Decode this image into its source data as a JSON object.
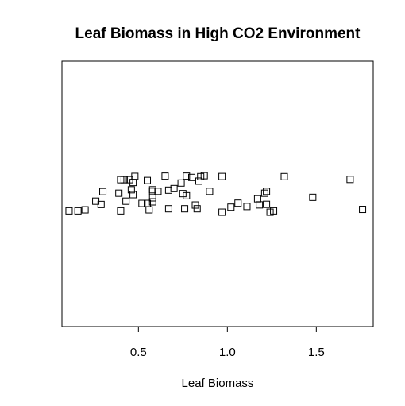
{
  "chart_data": {
    "type": "scatter",
    "title": "Leaf Biomass in High CO2 Environment",
    "xlabel": "Leaf Biomass",
    "ylabel": "",
    "xlim": [
      0.07,
      1.82
    ],
    "ylim": [
      -1,
      1
    ],
    "xticks": [
      0.5,
      1.0,
      1.5
    ],
    "xtick_labels": [
      "0.5",
      "1.0",
      "1.5"
    ],
    "grid": false,
    "legend": "none",
    "marker": "open-square",
    "marker_color": "#000000",
    "points": [
      {
        "x": 0.11,
        "y": -0.128
      },
      {
        "x": 0.16,
        "y": -0.128
      },
      {
        "x": 0.2,
        "y": -0.12
      },
      {
        "x": 0.26,
        "y": -0.055
      },
      {
        "x": 0.29,
        "y": -0.08
      },
      {
        "x": 0.3,
        "y": 0.017
      },
      {
        "x": 0.39,
        "y": 0.005
      },
      {
        "x": 0.4,
        "y": 0.107
      },
      {
        "x": 0.42,
        "y": 0.107
      },
      {
        "x": 0.4,
        "y": -0.128
      },
      {
        "x": 0.43,
        "y": -0.055
      },
      {
        "x": 0.45,
        "y": 0.107
      },
      {
        "x": 0.46,
        "y": 0.031
      },
      {
        "x": 0.47,
        "y": 0.086
      },
      {
        "x": 0.48,
        "y": 0.132
      },
      {
        "x": 0.47,
        "y": -0.006
      },
      {
        "x": 0.52,
        "y": -0.072
      },
      {
        "x": 0.55,
        "y": -0.072
      },
      {
        "x": 0.55,
        "y": 0.101
      },
      {
        "x": 0.56,
        "y": -0.12
      },
      {
        "x": 0.58,
        "y": -0.03
      },
      {
        "x": 0.58,
        "y": 0.031
      },
      {
        "x": 0.58,
        "y": 0.019
      },
      {
        "x": 0.58,
        "y": -0.06
      },
      {
        "x": 0.61,
        "y": 0.019
      },
      {
        "x": 0.65,
        "y": 0.134
      },
      {
        "x": 0.67,
        "y": 0.028
      },
      {
        "x": 0.67,
        "y": -0.112
      },
      {
        "x": 0.7,
        "y": 0.04
      },
      {
        "x": 0.74,
        "y": 0.082
      },
      {
        "x": 0.75,
        "y": 0.002
      },
      {
        "x": 0.76,
        "y": -0.112
      },
      {
        "x": 0.77,
        "y": 0.134
      },
      {
        "x": 0.77,
        "y": -0.014
      },
      {
        "x": 0.8,
        "y": 0.124
      },
      {
        "x": 0.82,
        "y": -0.084
      },
      {
        "x": 0.83,
        "y": -0.112
      },
      {
        "x": 0.84,
        "y": 0.096
      },
      {
        "x": 0.85,
        "y": 0.13
      },
      {
        "x": 0.87,
        "y": 0.137
      },
      {
        "x": 0.9,
        "y": 0.019
      },
      {
        "x": 0.97,
        "y": 0.131
      },
      {
        "x": 0.97,
        "y": -0.138
      },
      {
        "x": 1.02,
        "y": -0.1
      },
      {
        "x": 1.06,
        "y": -0.07
      },
      {
        "x": 1.11,
        "y": -0.095
      },
      {
        "x": 1.17,
        "y": -0.037
      },
      {
        "x": 1.18,
        "y": -0.083
      },
      {
        "x": 1.21,
        "y": 0.005
      },
      {
        "x": 1.22,
        "y": 0.019
      },
      {
        "x": 1.22,
        "y": -0.079
      },
      {
        "x": 1.24,
        "y": -0.138
      },
      {
        "x": 1.26,
        "y": -0.128
      },
      {
        "x": 1.32,
        "y": 0.13
      },
      {
        "x": 1.48,
        "y": -0.026
      },
      {
        "x": 1.69,
        "y": 0.109
      },
      {
        "x": 1.76,
        "y": -0.117
      }
    ]
  }
}
